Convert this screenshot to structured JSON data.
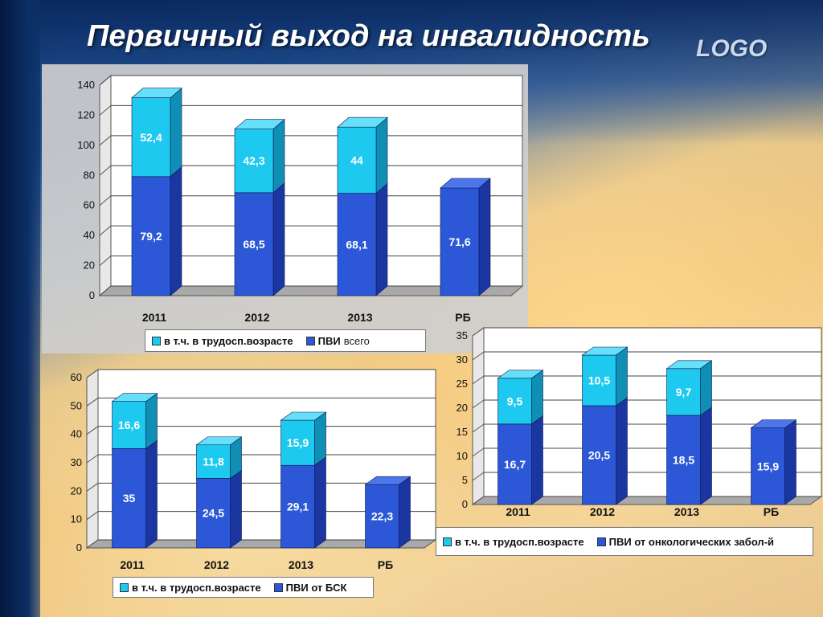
{
  "slide": {
    "title": "Первичный выход на инвалидность",
    "logo": "LOGO"
  },
  "colors": {
    "base": "#2c57d6",
    "base_side": "#1b36a0",
    "base_top": "#4c76ea",
    "top": "#1ec9ef",
    "top_side": "#0f8fb4",
    "top_top": "#66e0f8",
    "floor": "#a9a9a9",
    "wall": "#ffffff"
  },
  "chart_data": [
    {
      "type": "bar",
      "stacked": true,
      "categories": [
        "2011",
        "2012",
        "2013",
        "РБ"
      ],
      "ylim": [
        0,
        140
      ],
      "yticks": [
        0,
        20,
        40,
        60,
        80,
        100,
        120,
        140
      ],
      "series": [
        {
          "name": "ПВИ всего",
          "values": [
            79.2,
            68.5,
            68.1,
            71.6
          ],
          "labels": [
            "79,2",
            "68,5",
            "68,1",
            "71,6"
          ]
        },
        {
          "name": "в т.ч. в трудосп.возрасте",
          "values": [
            52.4,
            42.3,
            44,
            null
          ],
          "labels": [
            "52,4",
            "42,3",
            "44",
            ""
          ]
        }
      ],
      "legend": [
        {
          "name": "в т.ч. в трудосп.возрасте",
          "color": "#1ec9ef"
        },
        {
          "name": "ПВИ",
          "color": "#2c57d6",
          "suffix": "всего"
        }
      ],
      "grid": true,
      "legend_position": "bottom"
    },
    {
      "type": "bar",
      "stacked": true,
      "categories": [
        "2011",
        "2012",
        "2013",
        "РБ"
      ],
      "ylim": [
        0,
        60
      ],
      "yticks": [
        0,
        10,
        20,
        30,
        40,
        50,
        60
      ],
      "series": [
        {
          "name": "ПВИ от БСК",
          "values": [
            35,
            24.5,
            29.1,
            22.3
          ],
          "labels": [
            "35",
            "24,5",
            "29,1",
            "22,3"
          ]
        },
        {
          "name": "в т.ч. в трудосп.возрасте",
          "values": [
            16.6,
            11.8,
            15.9,
            null
          ],
          "labels": [
            "16,6",
            "11,8",
            "15,9",
            ""
          ]
        }
      ],
      "legend": [
        {
          "name": "в т.ч. в трудосп.возрасте",
          "color": "#1ec9ef"
        },
        {
          "name": "ПВИ от БСК",
          "color": "#2c57d6"
        }
      ],
      "grid": true,
      "legend_position": "bottom"
    },
    {
      "type": "bar",
      "stacked": true,
      "categories": [
        "2011",
        "2012",
        "2013",
        "РБ"
      ],
      "ylim": [
        0,
        35
      ],
      "yticks": [
        0,
        5,
        10,
        15,
        20,
        25,
        30,
        35
      ],
      "series": [
        {
          "name": "ПВИ от онкологических забол-й",
          "values": [
            16.7,
            20.5,
            18.5,
            15.9
          ],
          "labels": [
            "16,7",
            "20,5",
            "18,5",
            "15,9"
          ]
        },
        {
          "name": "в т.ч. в трудосп.возрасте",
          "values": [
            9.5,
            10.5,
            9.7,
            null
          ],
          "labels": [
            "9,5",
            "10,5",
            "9,7",
            ""
          ]
        }
      ],
      "legend": [
        {
          "name": "в т.ч. в трудосп.возрасте",
          "color": "#1ec9ef"
        },
        {
          "name": "ПВИ от онкологических забол-й",
          "color": "#2c57d6"
        }
      ],
      "grid": true,
      "legend_position": "bottom"
    }
  ]
}
